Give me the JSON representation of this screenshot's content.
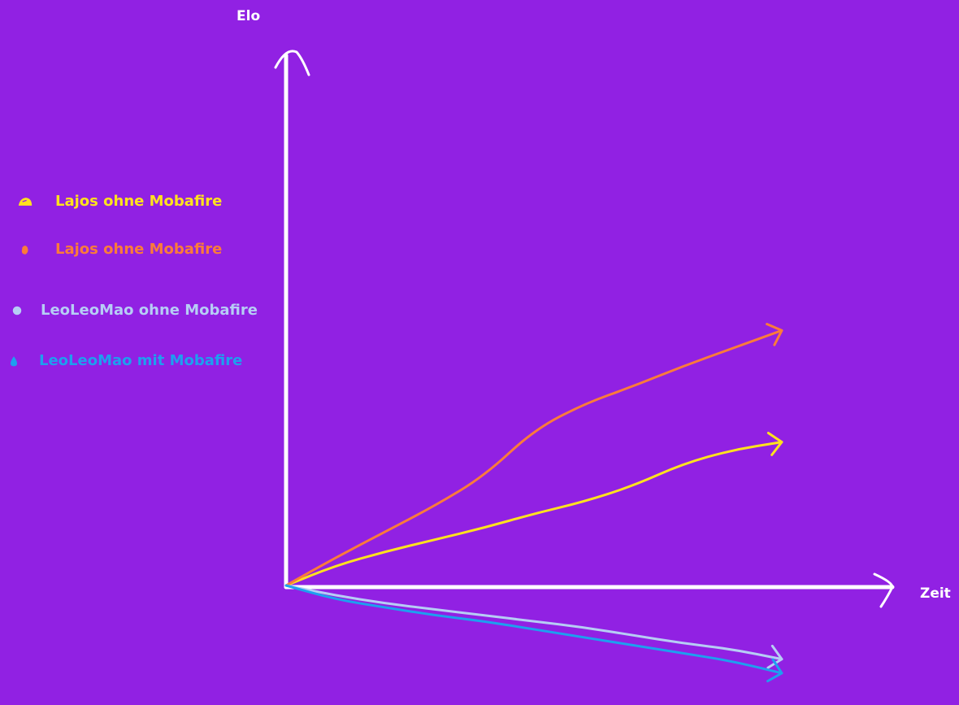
{
  "chart_data": {
    "type": "line",
    "title": "",
    "xlabel": "Zeit",
    "ylabel": "Elo",
    "grid": false,
    "legend_position": "left",
    "series": [
      {
        "name": "Lajos ohne Mobafire",
        "color": "#ffe21e",
        "marker": "cap-shape",
        "x": [
          0,
          1,
          2,
          3,
          4,
          5,
          6,
          7,
          8,
          9,
          10
        ],
        "y": [
          0,
          1.0,
          1.7,
          2.3,
          2.9,
          3.6,
          4.2,
          5.0,
          6.1,
          6.8,
          7.2
        ]
      },
      {
        "name": "Lajos ohne Mobafire",
        "color": "#fb7b3a",
        "marker": "bean-shape",
        "x": [
          0,
          1,
          2,
          3,
          4,
          5,
          6,
          7,
          8,
          9,
          10
        ],
        "y": [
          0,
          1.4,
          2.7,
          4.0,
          5.5,
          7.8,
          9.1,
          10.0,
          11.0,
          11.9,
          12.8
        ]
      },
      {
        "name": "LeoLeoMao ohne Mobafire",
        "color": "#b6cdf5",
        "marker": "circle",
        "x": [
          0,
          1,
          2,
          3,
          4,
          5,
          6,
          7,
          8,
          9,
          10
        ],
        "y": [
          0,
          -0.5,
          -0.9,
          -1.2,
          -1.5,
          -1.8,
          -2.1,
          -2.5,
          -2.9,
          -3.2,
          -3.7
        ]
      },
      {
        "name": "LeoLeoMao mit Mobafire",
        "color": "#1e9fef",
        "marker": "drop-shape",
        "x": [
          0,
          1,
          2,
          3,
          4,
          5,
          6,
          7,
          8,
          9,
          10
        ],
        "y": [
          0,
          -0.7,
          -1.1,
          -1.5,
          -1.8,
          -2.2,
          -2.6,
          -3.0,
          -3.4,
          -3.8,
          -4.4
        ]
      }
    ]
  },
  "colors": {
    "background": "#9121e3",
    "axes": "#ffffff"
  }
}
